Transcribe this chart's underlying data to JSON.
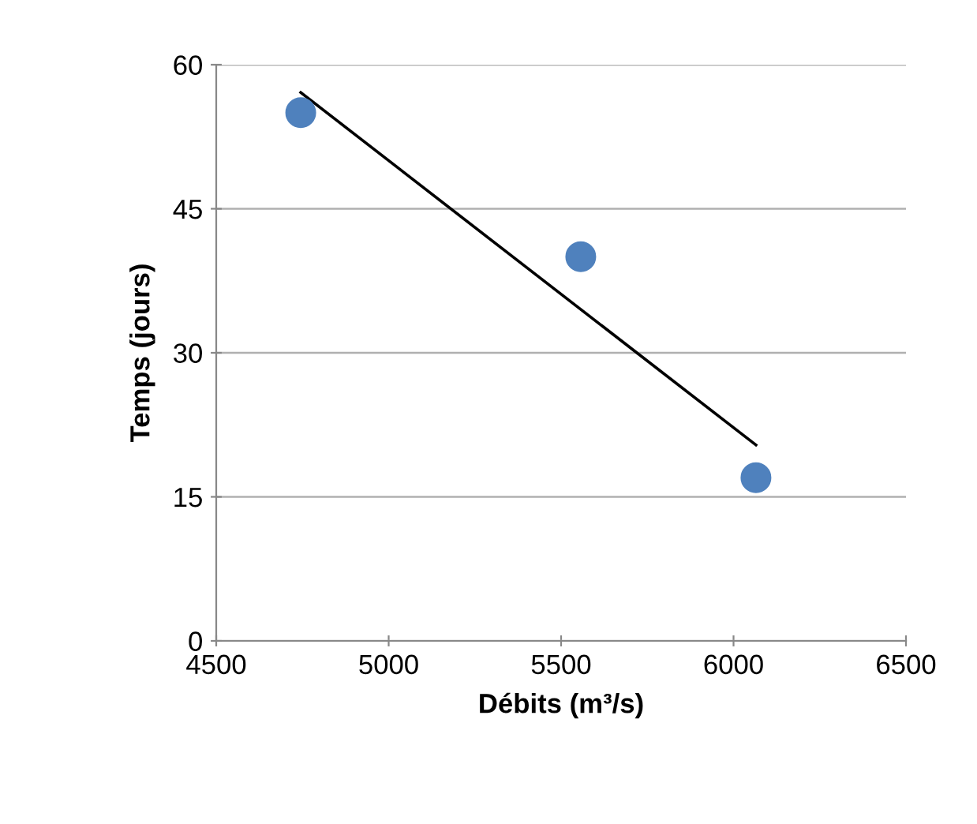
{
  "chart_data": {
    "type": "scatter",
    "xlabel": "Débits (m³/s)",
    "ylabel": "Temps (jours)",
    "xlim": [
      4500,
      6500
    ],
    "xticks": [
      4500,
      5000,
      5500,
      6000,
      6500
    ],
    "ylim": [
      0,
      60
    ],
    "yticks": [
      0,
      15,
      30,
      45,
      60
    ],
    "grid": "y",
    "marker": "circle",
    "series": [
      {
        "color": "#4f81bd",
        "x": [
          4745,
          5557,
          6065
        ],
        "values": [
          55,
          40,
          17
        ]
      },
      {
        "type": "line",
        "color": "#000000",
        "x": [
          4745,
          6065
        ],
        "values": [
          57.1,
          20.4
        ],
        "line_style": "solid",
        "marker": "none"
      }
    ]
  }
}
